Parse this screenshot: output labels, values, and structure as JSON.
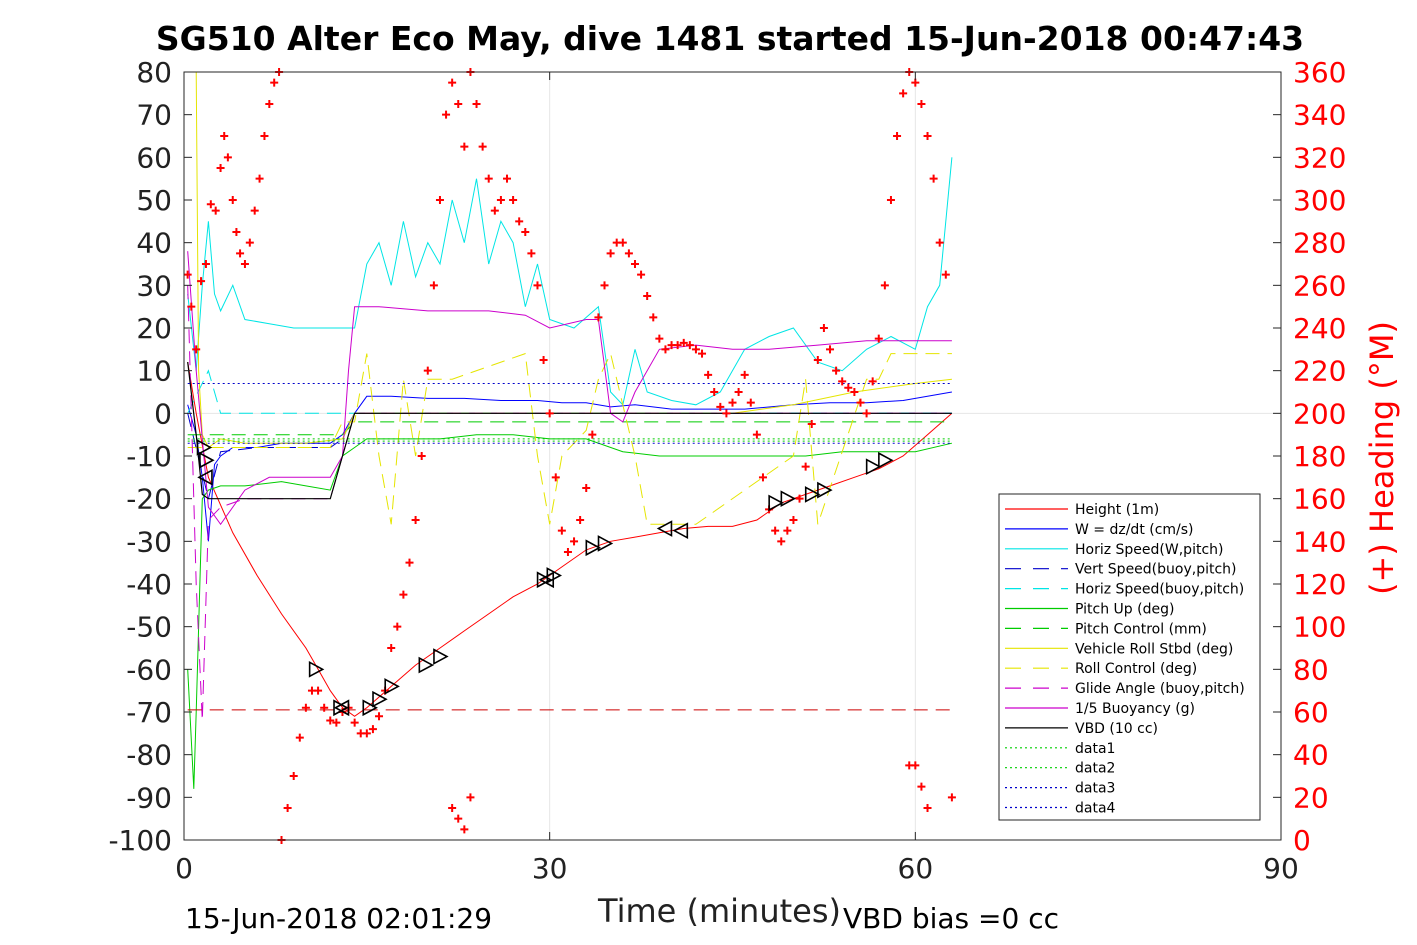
{
  "chart_data": {
    "type": "line",
    "title": "SG510 Alter Eco May, dive 1481 started 15-Jun-2018 00:47:43",
    "xlabel": "Time (minutes)",
    "ylabel_right": "(+) Heading (°M)",
    "footer_left": "15-Jun-2018 02:01:29",
    "footer_right": "VBD bias =0 cc",
    "xlim": [
      0,
      90
    ],
    "ylim": [
      -100,
      80
    ],
    "y2lim": [
      0,
      360
    ],
    "x_ticks": [
      "0",
      "30",
      "60",
      "90"
    ],
    "y_ticks": [
      "80",
      "70",
      "60",
      "50",
      "40",
      "30",
      "20",
      "10",
      "0",
      "-10",
      "-20",
      "-30",
      "-40",
      "-50",
      "-60",
      "-70",
      "-80",
      "-90",
      "-100"
    ],
    "y2_ticks": [
      "360",
      "340",
      "320",
      "300",
      "280",
      "260",
      "240",
      "220",
      "200",
      "180",
      "160",
      "140",
      "120",
      "100",
      "80",
      "60",
      "40",
      "20",
      "0"
    ],
    "grid": true,
    "legend_position": "lower-right",
    "legend": [
      {
        "label": "Height (1m)",
        "color": "#ff0000",
        "dash": "solid"
      },
      {
        "label": "W = dz/dt (cm/s)",
        "color": "#0000ff",
        "dash": "solid"
      },
      {
        "label": "Horiz Speed(W,pitch)",
        "color": "#00e5e5",
        "dash": "solid"
      },
      {
        "label": "Vert Speed(buoy,pitch)",
        "color": "#0000cc",
        "dash": "dashed"
      },
      {
        "label": "Horiz Speed(buoy,pitch)",
        "color": "#00e5e5",
        "dash": "dashed"
      },
      {
        "label": "Pitch Up (deg)",
        "color": "#00cc00",
        "dash": "solid"
      },
      {
        "label": "Pitch Control (mm)",
        "color": "#00cc00",
        "dash": "dashed"
      },
      {
        "label": "Vehicle Roll Stbd (deg)",
        "color": "#e5e500",
        "dash": "solid"
      },
      {
        "label": "Roll Control (deg)",
        "color": "#e5e500",
        "dash": "dashed"
      },
      {
        "label": "Glide Angle (buoy,pitch)",
        "color": "#cc00cc",
        "dash": "dashed"
      },
      {
        "label": "1/5 Buoyancy (g)",
        "color": "#cc00cc",
        "dash": "solid"
      },
      {
        "label": "VBD (10 cc)",
        "color": "#000000",
        "dash": "solid"
      },
      {
        "label": "data1",
        "color": "#00cc00",
        "dash": "dotted"
      },
      {
        "label": "data2",
        "color": "#00cc00",
        "dash": "dotted"
      },
      {
        "label": "data3",
        "color": "#0000cc",
        "dash": "dotted"
      },
      {
        "label": "data4",
        "color": "#0000cc",
        "dash": "dotted"
      }
    ],
    "series": [
      {
        "name": "Height (1m)",
        "color": "#ff0000",
        "dash": "solid",
        "width": 1,
        "x": [
          0.3,
          1,
          2,
          4,
          6,
          8,
          10,
          11,
          12,
          13,
          14,
          15,
          17,
          19,
          21,
          23,
          25,
          27,
          29,
          31,
          33,
          35,
          37,
          39,
          41,
          43,
          45,
          47,
          49,
          51,
          53,
          55,
          57,
          59,
          61,
          63
        ],
        "y": [
          12,
          0,
          -15,
          -28,
          -38,
          -47,
          -55,
          -60,
          -65,
          -69,
          -71,
          -69,
          -64,
          -59,
          -55,
          -51,
          -47,
          -43,
          -40,
          -36,
          -32,
          -30,
          -29,
          -28,
          -27,
          -26.5,
          -26.5,
          -25,
          -21,
          -19,
          -17,
          -15,
          -13,
          -10,
          -5,
          0
        ]
      },
      {
        "name": "W = dz/dt (cm/s)",
        "color": "#0000ff",
        "dash": "solid",
        "width": 1,
        "x": [
          0.3,
          1,
          1.5,
          2,
          2.5,
          3,
          4,
          6,
          8,
          10,
          12,
          13,
          14,
          15,
          17,
          20,
          23,
          26,
          29,
          31,
          33,
          35,
          37,
          40,
          43,
          46,
          50,
          53,
          56,
          59,
          61,
          63
        ],
        "y": [
          2,
          -5,
          -15,
          -30,
          -12,
          -10,
          -8,
          -8,
          -7,
          -7,
          -7,
          -5,
          0,
          4,
          4,
          3.5,
          3.5,
          3,
          3,
          2.5,
          2.5,
          1.5,
          2,
          1,
          1,
          1,
          2,
          2.5,
          2.5,
          3,
          4,
          5
        ]
      },
      {
        "name": "Horiz Speed(W,pitch)",
        "color": "#00e5e5",
        "dash": "solid",
        "width": 1,
        "x": [
          0.3,
          1,
          1.5,
          2,
          2.5,
          3,
          4,
          5,
          7,
          9,
          11,
          13,
          14,
          15,
          16,
          17,
          18,
          19,
          20,
          21,
          22,
          23,
          24,
          25,
          26,
          27,
          28,
          29,
          30,
          32,
          34,
          35,
          36,
          37,
          38,
          40,
          42,
          44,
          46,
          48,
          50,
          52,
          54,
          56,
          58,
          60,
          61,
          62,
          63
        ],
        "y": [
          28,
          10,
          30,
          45,
          28,
          24,
          30,
          22,
          21,
          20,
          20,
          20,
          20,
          35,
          40,
          30,
          45,
          32,
          40,
          35,
          50,
          40,
          55,
          35,
          45,
          40,
          25,
          35,
          22,
          20,
          25,
          5,
          2,
          15,
          5,
          3,
          2,
          5,
          15,
          18,
          20,
          12,
          10,
          15,
          18,
          15,
          25,
          30,
          60
        ]
      },
      {
        "name": "Vert Speed(buoy,pitch)",
        "color": "#0000cc",
        "dash": "dashed",
        "width": 1,
        "x": [
          0.3,
          2,
          3,
          6,
          12,
          13,
          14,
          20,
          30,
          40,
          50,
          60,
          63
        ],
        "y": [
          0,
          -20,
          -9,
          -8,
          -8,
          -6,
          0,
          0,
          0,
          0,
          0,
          0,
          0
        ]
      },
      {
        "name": "Horiz Speed(buoy,pitch)",
        "color": "#00e5e5",
        "dash": "dashed",
        "width": 1,
        "x": [
          0.3,
          2,
          3,
          12,
          14,
          20,
          34,
          36,
          40,
          50,
          63
        ],
        "y": [
          0,
          10,
          0,
          0,
          0,
          0,
          0,
          0,
          0,
          0,
          0
        ]
      },
      {
        "name": "Pitch Up (deg)",
        "color": "#00cc00",
        "dash": "solid",
        "width": 1,
        "x": [
          0.3,
          0.8,
          1,
          1.5,
          2,
          3,
          5,
          8,
          10,
          12,
          13,
          14,
          15,
          18,
          21,
          24,
          27,
          30,
          33,
          36,
          39,
          42,
          45,
          48,
          51,
          54,
          57,
          60,
          63
        ],
        "y": [
          -60,
          -88,
          -70,
          -20,
          -18,
          -17,
          -17,
          -16,
          -17,
          -18,
          -10,
          -8,
          -6,
          -6,
          -6,
          -5,
          -5,
          -6,
          -6,
          -9,
          -10,
          -10,
          -10,
          -10,
          -10,
          -9,
          -9,
          -9,
          -7
        ]
      },
      {
        "name": "Pitch Control (mm)",
        "color": "#00cc00",
        "dash": "dashed",
        "width": 1,
        "x": [
          0.3,
          2,
          13,
          14,
          63
        ],
        "y": [
          -5,
          -5,
          -5,
          -2,
          -2
        ]
      },
      {
        "name": "Vehicle Roll Stbd (deg)",
        "color": "#e5e500",
        "dash": "solid",
        "width": 1,
        "x": [
          1,
          1.2,
          1.5,
          2,
          3,
          5,
          10,
          13,
          14,
          15,
          20,
          25,
          30,
          35,
          40,
          45,
          50,
          55,
          60,
          63
        ],
        "y": [
          80,
          10,
          -5,
          -8,
          -6,
          -7,
          -7,
          -6,
          0,
          0,
          0,
          0,
          0,
          0,
          0,
          0,
          2,
          5,
          7,
          8
        ]
      },
      {
        "name": "Roll Control (deg)",
        "color": "#e5e500",
        "dash": "dashed",
        "width": 1,
        "x": [
          0.3,
          12,
          13,
          14,
          15,
          16,
          17,
          18,
          19,
          20,
          22,
          28,
          29,
          30,
          31,
          33,
          34,
          35,
          37,
          38,
          40,
          42,
          50,
          51,
          52,
          56,
          57,
          58,
          63
        ],
        "y": [
          -8,
          -8,
          -2,
          -2,
          14,
          -10,
          -26,
          8,
          -10,
          8,
          8,
          14,
          -10,
          -26,
          -10,
          -4,
          8,
          14,
          -10,
          -26,
          -26,
          -26,
          -10,
          8,
          -26,
          8,
          8,
          14,
          14
        ]
      },
      {
        "name": "Glide Angle (buoy,pitch)",
        "color": "#cc00cc",
        "dash": "dashed",
        "width": 1,
        "x": [
          0.3,
          1,
          1.5,
          2,
          3,
          5,
          10,
          12,
          13,
          14,
          15,
          20,
          30,
          40,
          50,
          63
        ],
        "y": [
          30,
          -40,
          -72,
          -25,
          -22,
          -20,
          -20,
          -20,
          -10,
          0,
          0,
          0,
          0,
          0,
          0,
          0
        ]
      },
      {
        "name": "1/5 Buoyancy (g)",
        "color": "#cc00cc",
        "dash": "solid",
        "width": 1,
        "x": [
          0.3,
          1,
          2,
          3,
          5,
          7,
          10,
          12,
          13,
          13.5,
          14,
          16,
          20,
          25,
          28,
          30,
          33,
          34,
          35,
          36,
          37,
          39,
          42,
          45,
          48,
          52,
          56,
          60,
          63
        ],
        "y": [
          38,
          10,
          -22,
          -26,
          -18,
          -15,
          -15,
          -15,
          -10,
          10,
          25,
          25,
          24,
          24,
          23,
          20,
          22,
          22,
          0,
          -2,
          5,
          15,
          16,
          15,
          15,
          16,
          17,
          17,
          17
        ]
      },
      {
        "name": "VBD (10 cc)",
        "color": "#000000",
        "dash": "solid",
        "width": 1.2,
        "x": [
          0.3,
          1,
          1.5,
          2,
          12,
          13,
          14,
          20,
          30,
          40,
          50,
          60,
          63
        ],
        "y": [
          12,
          -5,
          -19,
          -20,
          -20,
          -10,
          0,
          0,
          0,
          0,
          0,
          0,
          0
        ]
      },
      {
        "name": "data3",
        "color": "#0000cc",
        "dash": "dotted",
        "width": 1,
        "x": [
          0.3,
          63
        ],
        "y": [
          7,
          7
        ]
      },
      {
        "name": "data4",
        "color": "#0000cc",
        "dash": "dotted",
        "width": 1,
        "x": [
          0.3,
          63
        ],
        "y": [
          -7,
          -7
        ]
      },
      {
        "name": "data1",
        "color": "#00cc00",
        "dash": "dotted",
        "width": 1,
        "x": [
          0.3,
          63
        ],
        "y": [
          -6,
          -6
        ]
      },
      {
        "name": "data2",
        "color": "#00cc00",
        "dash": "dotted",
        "width": 1,
        "x": [
          0.3,
          63
        ],
        "y": [
          -6.5,
          -6.5
        ]
      },
      {
        "name": "",
        "color": "#cc0000",
        "dash": "dashed",
        "width": 1,
        "x": [
          0.3,
          63
        ],
        "y": [
          -69.5,
          -69.5
        ]
      }
    ],
    "heading_points": {
      "color": "#ff0000",
      "x": [
        0.3,
        0.6,
        1,
        1.4,
        1.8,
        2.2,
        2.6,
        3,
        3.3,
        3.6,
        4,
        4.3,
        4.6,
        5,
        5.4,
        5.8,
        6.2,
        6.6,
        7,
        7.4,
        7.8,
        8,
        8.5,
        9,
        9.5,
        10,
        10.5,
        11,
        11.5,
        12,
        12.5,
        13,
        13.5,
        14,
        14.5,
        15,
        15.5,
        16,
        16.5,
        17,
        17.5,
        18,
        18.5,
        19,
        19.5,
        20,
        20.5,
        21,
        21.5,
        22,
        22.5,
        23,
        23.5,
        24,
        24.5,
        25,
        25.5,
        26,
        26.5,
        27,
        27.5,
        28,
        28.5,
        29,
        29.5,
        30,
        30.5,
        31,
        31.5,
        32,
        32.5,
        33,
        33.5,
        34,
        34.5,
        35,
        35.5,
        36,
        36.5,
        37,
        37.5,
        38,
        38.5,
        39,
        39.5,
        40,
        40.5,
        41,
        41.5,
        42,
        42.5,
        43,
        43.5,
        44,
        44.5,
        45,
        45.5,
        46,
        46.5,
        47,
        47.5,
        48,
        48.5,
        49,
        49.5,
        50,
        50.5,
        51,
        51.5,
        52,
        52.5,
        53,
        53.5,
        54,
        54.5,
        55,
        55.5,
        56,
        56.5,
        57,
        57.5,
        58,
        58.5,
        59,
        59.5,
        60,
        60.5,
        61,
        61.5,
        62,
        62.5,
        63,
        22,
        22.5,
        23,
        23.5,
        59.5,
        60,
        60.5,
        61,
        61.5
      ],
      "heading": [
        265,
        250,
        230,
        262,
        270,
        298,
        295,
        315,
        330,
        320,
        300,
        285,
        275,
        270,
        280,
        295,
        310,
        330,
        345,
        355,
        360,
        0,
        15,
        30,
        48,
        62,
        70,
        70,
        62,
        56,
        55,
        60,
        62,
        55,
        50,
        50,
        52,
        58,
        70,
        90,
        100,
        115,
        130,
        150,
        180,
        220,
        260,
        300,
        340,
        355,
        345,
        325,
        360,
        345,
        325,
        310,
        295,
        300,
        310,
        300,
        290,
        285,
        275,
        260,
        225,
        200,
        170,
        145,
        135,
        140,
        150,
        165,
        190,
        245,
        260,
        275,
        280,
        280,
        275,
        270,
        265,
        255,
        245,
        235,
        230,
        232,
        232,
        233,
        232,
        230,
        228,
        218,
        210,
        203,
        200,
        205,
        210,
        218,
        205,
        190,
        170,
        155,
        145,
        140,
        145,
        150,
        160,
        175,
        195,
        225,
        240,
        230,
        220,
        215,
        212,
        210,
        205,
        200,
        215,
        235,
        260,
        300,
        330,
        350,
        360,
        355,
        345,
        330,
        310,
        280,
        265,
        20,
        15,
        10,
        5,
        20,
        35,
        35,
        25,
        15
      ]
    },
    "markers": {
      "color": "#000000",
      "right_pointing": [
        [
          1.6,
          -8
        ],
        [
          1.8,
          -11
        ],
        [
          10.8,
          -60
        ],
        [
          12.8,
          -69
        ],
        [
          15.2,
          -69
        ],
        [
          16,
          -67
        ],
        [
          17,
          -64
        ],
        [
          19.8,
          -59
        ],
        [
          21,
          -57
        ],
        [
          29.5,
          -39
        ],
        [
          30.3,
          -38
        ],
        [
          33.5,
          -31.5
        ],
        [
          34.5,
          -30.5
        ],
        [
          48.5,
          -21
        ],
        [
          49.5,
          -20
        ],
        [
          51.5,
          -19
        ],
        [
          52.5,
          -18
        ],
        [
          56.5,
          -12.5
        ],
        [
          57.5,
          -11
        ]
      ],
      "left_pointing": [
        [
          1.8,
          -15
        ],
        [
          13,
          -69
        ],
        [
          29.8,
          -39
        ],
        [
          39.5,
          -27
        ],
        [
          40.8,
          -27.5
        ]
      ]
    }
  }
}
